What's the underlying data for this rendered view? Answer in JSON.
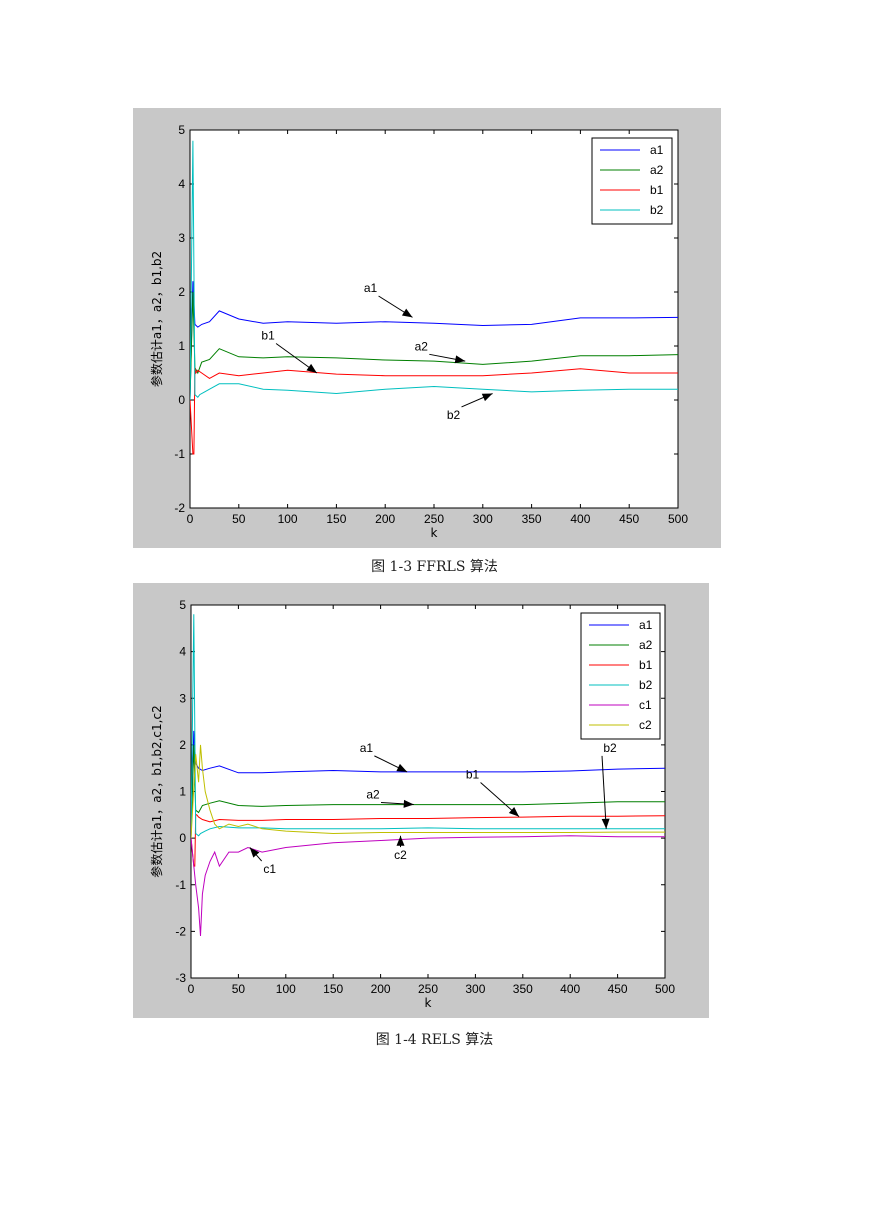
{
  "chart_data": [
    {
      "type": "line",
      "caption": "图 1-3   FFRLS 算法",
      "xlabel": "k",
      "ylabel": "参数估计a1，a2，b1,b2",
      "xlim": [
        0,
        500
      ],
      "ylim": [
        -2,
        5
      ],
      "xticks": [
        "0",
        "50",
        "100",
        "150",
        "200",
        "250",
        "300",
        "350",
        "400",
        "450",
        "500"
      ],
      "yticks": [
        "-2",
        "-1",
        "0",
        "1",
        "2",
        "3",
        "4",
        "5"
      ],
      "legend_position": "top-right",
      "grid": false,
      "series": [
        {
          "name": "a1",
          "color": "#0000ff",
          "x": [
            0,
            3,
            5,
            8,
            12,
            20,
            30,
            50,
            75,
            100,
            150,
            200,
            250,
            300,
            350,
            400,
            450,
            500
          ],
          "y": [
            0,
            2.2,
            1.4,
            1.35,
            1.4,
            1.45,
            1.65,
            1.5,
            1.42,
            1.45,
            1.42,
            1.45,
            1.42,
            1.38,
            1.4,
            1.52,
            1.52,
            1.53
          ]
        },
        {
          "name": "a2",
          "color": "#007f00",
          "x": [
            0,
            3,
            5,
            8,
            12,
            20,
            30,
            50,
            75,
            100,
            150,
            200,
            250,
            300,
            350,
            400,
            450,
            500
          ],
          "y": [
            0,
            2.0,
            0.6,
            0.5,
            0.7,
            0.75,
            0.95,
            0.8,
            0.78,
            0.8,
            0.78,
            0.74,
            0.72,
            0.66,
            0.72,
            0.82,
            0.82,
            0.84
          ]
        },
        {
          "name": "b1",
          "color": "#ff0000",
          "x": [
            0,
            3,
            4,
            5,
            6,
            8,
            12,
            20,
            30,
            50,
            75,
            100,
            150,
            200,
            250,
            300,
            350,
            400,
            450,
            500
          ],
          "y": [
            0,
            -1.0,
            -1.0,
            0.6,
            0.5,
            0.55,
            0.5,
            0.4,
            0.5,
            0.45,
            0.5,
            0.55,
            0.48,
            0.45,
            0.45,
            0.45,
            0.5,
            0.58,
            0.5,
            0.5
          ]
        },
        {
          "name": "b2",
          "color": "#00bfbf",
          "x": [
            0,
            3,
            5,
            8,
            10,
            15,
            20,
            30,
            50,
            75,
            100,
            150,
            200,
            250,
            300,
            350,
            400,
            450,
            500
          ],
          "y": [
            0,
            4.8,
            0.1,
            0.05,
            0.1,
            0.15,
            0.2,
            0.3,
            0.3,
            0.2,
            0.18,
            0.12,
            0.2,
            0.25,
            0.2,
            0.15,
            0.18,
            0.2,
            0.2
          ]
        }
      ],
      "annotations": [
        {
          "text": "a1",
          "x": 185,
          "y": 2.0,
          "ax": 228,
          "ay": 1.53
        },
        {
          "text": "b1",
          "x": 80,
          "y": 1.12,
          "ax": 130,
          "ay": 0.5
        },
        {
          "text": "a2",
          "x": 237,
          "y": 0.92,
          "ax": 282,
          "ay": 0.72
        },
        {
          "text": "b2",
          "x": 270,
          "y": -0.35,
          "ax": 310,
          "ay": 0.12
        }
      ]
    },
    {
      "type": "line",
      "caption": "图 1-4   RELS 算法",
      "xlabel": "k",
      "ylabel": "参数估计a1，a2，b1,b2,c1,c2",
      "xlim": [
        0,
        500
      ],
      "ylim": [
        -3,
        5
      ],
      "xticks": [
        "0",
        "50",
        "100",
        "150",
        "200",
        "250",
        "300",
        "350",
        "400",
        "450",
        "500"
      ],
      "yticks": [
        "-3",
        "-2",
        "-1",
        "0",
        "1",
        "2",
        "3",
        "4",
        "5"
      ],
      "legend_position": "top-right",
      "grid": false,
      "series": [
        {
          "name": "a1",
          "color": "#0000ff",
          "x": [
            0,
            3,
            5,
            8,
            12,
            20,
            30,
            50,
            75,
            100,
            150,
            200,
            250,
            300,
            350,
            400,
            450,
            500
          ],
          "y": [
            0,
            2.3,
            1.6,
            1.5,
            1.45,
            1.5,
            1.55,
            1.4,
            1.4,
            1.42,
            1.45,
            1.42,
            1.42,
            1.42,
            1.42,
            1.44,
            1.48,
            1.5
          ]
        },
        {
          "name": "a2",
          "color": "#007f00",
          "x": [
            0,
            3,
            5,
            8,
            12,
            20,
            30,
            50,
            75,
            100,
            150,
            200,
            250,
            300,
            350,
            400,
            450,
            500
          ],
          "y": [
            0,
            2.0,
            0.6,
            0.55,
            0.7,
            0.75,
            0.8,
            0.7,
            0.68,
            0.7,
            0.72,
            0.72,
            0.72,
            0.72,
            0.72,
            0.75,
            0.78,
            0.78
          ]
        },
        {
          "name": "b1",
          "color": "#ff0000",
          "x": [
            0,
            3,
            4,
            5,
            6,
            8,
            12,
            20,
            30,
            50,
            75,
            100,
            150,
            200,
            250,
            300,
            350,
            400,
            450,
            500
          ],
          "y": [
            0,
            -0.6,
            -0.6,
            0.5,
            0.5,
            0.45,
            0.4,
            0.35,
            0.4,
            0.38,
            0.38,
            0.4,
            0.4,
            0.42,
            0.42,
            0.44,
            0.45,
            0.47,
            0.47,
            0.48
          ]
        },
        {
          "name": "b2",
          "color": "#00bfbf",
          "x": [
            0,
            3,
            5,
            8,
            10,
            15,
            20,
            30,
            50,
            75,
            100,
            150,
            200,
            250,
            300,
            350,
            400,
            450,
            500
          ],
          "y": [
            0,
            4.8,
            0.1,
            0.05,
            0.1,
            0.15,
            0.2,
            0.25,
            0.22,
            0.22,
            0.2,
            0.2,
            0.2,
            0.22,
            0.2,
            0.2,
            0.2,
            0.2,
            0.2
          ]
        },
        {
          "name": "c1",
          "color": "#bf00bf",
          "x": [
            0,
            5,
            8,
            10,
            12,
            15,
            20,
            25,
            30,
            40,
            50,
            60,
            75,
            100,
            150,
            200,
            250,
            300,
            350,
            400,
            450,
            500
          ],
          "y": [
            0,
            -1.0,
            -1.5,
            -2.1,
            -1.2,
            -0.8,
            -0.5,
            -0.3,
            -0.6,
            -0.3,
            -0.3,
            -0.2,
            -0.3,
            -0.2,
            -0.1,
            -0.05,
            0,
            0.02,
            0.03,
            0.05,
            0.03,
            0.03
          ]
        },
        {
          "name": "c2",
          "color": "#bfbf00",
          "x": [
            0,
            5,
            8,
            10,
            12,
            15,
            20,
            25,
            30,
            40,
            50,
            60,
            75,
            100,
            150,
            200,
            250,
            300,
            350,
            400,
            450,
            500
          ],
          "y": [
            0,
            1.8,
            1.2,
            2.0,
            1.5,
            1.0,
            0.6,
            0.3,
            0.2,
            0.3,
            0.25,
            0.3,
            0.2,
            0.15,
            0.1,
            0.12,
            0.12,
            0.12,
            0.12,
            0.12,
            0.13,
            0.13
          ]
        }
      ],
      "annotations": [
        {
          "text": "a1",
          "x": 185,
          "y": 1.85,
          "ax": 228,
          "ay": 1.42
        },
        {
          "text": "a2",
          "x": 192,
          "y": 0.85,
          "ax": 235,
          "ay": 0.72
        },
        {
          "text": "b1",
          "x": 297,
          "y": 1.28,
          "ax": 346,
          "ay": 0.46
        },
        {
          "text": "b2",
          "x": 442,
          "y": 1.85,
          "ax": 438,
          "ay": 0.2
        },
        {
          "text": "c1",
          "x": 83,
          "y": -0.75,
          "ax": 62,
          "ay": -0.2
        },
        {
          "text": "c2",
          "x": 221,
          "y": -0.45,
          "ax": 221,
          "ay": 0.05
        }
      ]
    }
  ]
}
